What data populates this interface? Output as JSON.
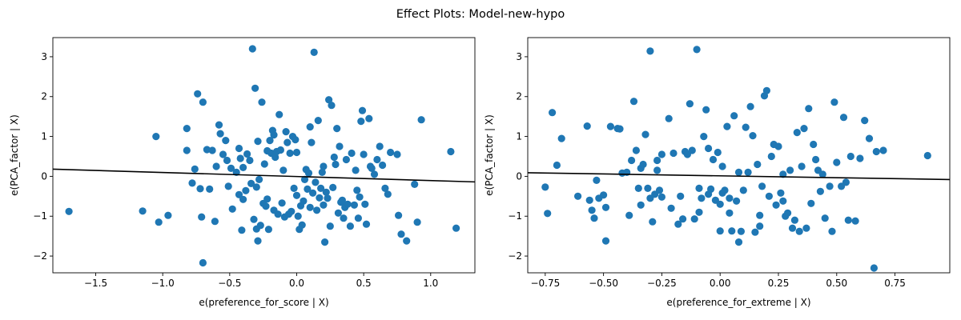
{
  "figure": {
    "suptitle": "Effect Plots: Model-new-hypo"
  },
  "colors": {
    "point": "#1f77b4",
    "line": "#000000",
    "axis": "#000000"
  },
  "chart_data": [
    {
      "type": "scatter",
      "xlabel": "e(preference_for_score | X)",
      "ylabel": "e(PCA_factor | X)",
      "xlim": [
        -1.82,
        1.33
      ],
      "ylim": [
        -2.42,
        3.48
      ],
      "xticks": [
        -1.5,
        -1.0,
        -0.5,
        0.0,
        0.5,
        1.0
      ],
      "xtick_labels": [
        "−1.5",
        "−1.0",
        "−0.5",
        "0.0",
        "0.5",
        "1.0"
      ],
      "yticks": [
        -2,
        -1,
        0,
        1,
        2,
        3
      ],
      "ytick_labels": [
        "−2",
        "−1",
        "0",
        "1",
        "2",
        "3"
      ],
      "grid": false,
      "fit_line": {
        "x": [
          -1.82,
          1.33
        ],
        "y": [
          0.18,
          -0.14
        ]
      },
      "points": [
        [
          -1.7,
          -0.88
        ],
        [
          -1.15,
          -0.87
        ],
        [
          -1.05,
          1.0
        ],
        [
          -1.03,
          -1.15
        ],
        [
          -0.96,
          -0.98
        ],
        [
          -0.82,
          1.2
        ],
        [
          -0.82,
          0.65
        ],
        [
          -0.78,
          -0.17
        ],
        [
          -0.76,
          0.18
        ],
        [
          -0.74,
          2.07
        ],
        [
          -0.72,
          -0.31
        ],
        [
          -0.71,
          -1.02
        ],
        [
          -0.7,
          1.86
        ],
        [
          -0.7,
          -2.17
        ],
        [
          -0.67,
          0.67
        ],
        [
          -0.65,
          -0.32
        ],
        [
          -0.63,
          0.65
        ],
        [
          -0.61,
          -1.13
        ],
        [
          -0.6,
          0.25
        ],
        [
          -0.58,
          1.29
        ],
        [
          -0.57,
          1.07
        ],
        [
          -0.55,
          0.55
        ],
        [
          -0.53,
          0.9
        ],
        [
          -0.52,
          0.4
        ],
        [
          -0.51,
          -0.25
        ],
        [
          -0.49,
          0.2
        ],
        [
          -0.48,
          -0.82
        ],
        [
          -0.45,
          0.1
        ],
        [
          -0.43,
          0.7
        ],
        [
          -0.43,
          -0.46
        ],
        [
          -0.42,
          0.45
        ],
        [
          -0.41,
          -1.35
        ],
        [
          -0.4,
          0.22
        ],
        [
          -0.4,
          -0.58
        ],
        [
          -0.38,
          -0.36
        ],
        [
          -0.37,
          0.56
        ],
        [
          -0.35,
          0.4
        ],
        [
          -0.34,
          -0.18
        ],
        [
          -0.33,
          3.2
        ],
        [
          -0.32,
          -1.08
        ],
        [
          -0.31,
          2.21
        ],
        [
          -0.3,
          -0.27
        ],
        [
          -0.3,
          -1.32
        ],
        [
          -0.29,
          -1.62
        ],
        [
          -0.29,
          0.88
        ],
        [
          -0.28,
          -0.08
        ],
        [
          -0.27,
          -1.23
        ],
        [
          -0.26,
          1.86
        ],
        [
          -0.25,
          -0.68
        ],
        [
          -0.24,
          0.31
        ],
        [
          -0.23,
          -0.75
        ],
        [
          -0.22,
          0.64
        ],
        [
          -0.22,
          -0.57
        ],
        [
          -0.21,
          -1.33
        ],
        [
          -0.2,
          0.9
        ],
        [
          -0.19,
          0.58
        ],
        [
          -0.18,
          1.15
        ],
        [
          -0.17,
          1.04
        ],
        [
          -0.17,
          -0.85
        ],
        [
          -0.16,
          0.48
        ],
        [
          -0.15,
          0.62
        ],
        [
          -0.14,
          -0.95
        ],
        [
          -0.13,
          1.55
        ],
        [
          -0.12,
          0.66
        ],
        [
          -0.11,
          -0.67
        ],
        [
          -0.1,
          0.15
        ],
        [
          -0.09,
          -1.02
        ],
        [
          -0.08,
          1.12
        ],
        [
          -0.07,
          0.85
        ],
        [
          -0.06,
          -0.95
        ],
        [
          -0.05,
          0.58
        ],
        [
          -0.04,
          -0.88
        ],
        [
          -0.03,
          1.0
        ],
        [
          -0.02,
          -0.3
        ],
        [
          -0.01,
          0.92
        ],
        [
          0.0,
          0.6
        ],
        [
          0.0,
          -0.48
        ],
        [
          0.01,
          -1.0
        ],
        [
          0.02,
          -1.33
        ],
        [
          0.03,
          -0.74
        ],
        [
          0.04,
          -1.22
        ],
        [
          0.05,
          -0.62
        ],
        [
          0.06,
          -0.08
        ],
        [
          0.07,
          0.17
        ],
        [
          0.08,
          -0.32
        ],
        [
          0.09,
          0.08
        ],
        [
          0.1,
          -0.78
        ],
        [
          0.1,
          1.24
        ],
        [
          0.11,
          0.85
        ],
        [
          0.12,
          -0.42
        ],
        [
          0.13,
          3.11
        ],
        [
          0.14,
          -0.15
        ],
        [
          0.15,
          -0.85
        ],
        [
          0.16,
          1.4
        ],
        [
          0.17,
          -0.54
        ],
        [
          0.18,
          -0.3
        ],
        [
          0.19,
          0.1
        ],
        [
          0.2,
          0.25
        ],
        [
          0.2,
          -0.72
        ],
        [
          0.21,
          -1.65
        ],
        [
          0.22,
          -0.4
        ],
        [
          0.23,
          -0.55
        ],
        [
          0.24,
          1.92
        ],
        [
          0.25,
          -1.25
        ],
        [
          0.26,
          1.78
        ],
        [
          0.27,
          -0.28
        ],
        [
          0.28,
          0.48
        ],
        [
          0.29,
          0.3
        ],
        [
          0.3,
          1.2
        ],
        [
          0.31,
          -0.92
        ],
        [
          0.32,
          0.75
        ],
        [
          0.33,
          -0.65
        ],
        [
          0.34,
          -0.6
        ],
        [
          0.35,
          -1.05
        ],
        [
          0.36,
          -0.78
        ],
        [
          0.37,
          0.42
        ],
        [
          0.38,
          -0.7
        ],
        [
          0.4,
          -1.25
        ],
        [
          0.41,
          0.58
        ],
        [
          0.43,
          -0.72
        ],
        [
          0.44,
          0.15
        ],
        [
          0.45,
          -0.35
        ],
        [
          0.46,
          -1.05
        ],
        [
          0.47,
          -0.52
        ],
        [
          0.48,
          1.38
        ],
        [
          0.49,
          1.65
        ],
        [
          0.5,
          0.55
        ],
        [
          0.51,
          -0.7
        ],
        [
          0.52,
          -1.2
        ],
        [
          0.54,
          1.45
        ],
        [
          0.55,
          0.25
        ],
        [
          0.56,
          0.2
        ],
        [
          0.58,
          0.05
        ],
        [
          0.6,
          0.42
        ],
        [
          0.62,
          0.75
        ],
        [
          0.64,
          0.28
        ],
        [
          0.66,
          -0.3
        ],
        [
          0.68,
          -0.45
        ],
        [
          0.7,
          0.6
        ],
        [
          0.75,
          0.55
        ],
        [
          0.76,
          -0.98
        ],
        [
          0.78,
          -1.45
        ],
        [
          0.82,
          -1.62
        ],
        [
          0.88,
          -0.2
        ],
        [
          0.9,
          -1.15
        ],
        [
          0.93,
          1.42
        ],
        [
          1.15,
          0.62
        ],
        [
          1.19,
          -1.3
        ]
      ]
    },
    {
      "type": "scatter",
      "xlabel": "e(preference_for_extreme | X)",
      "ylabel": "e(PCA_factor | X)",
      "xlim": [
        -0.825,
        0.985
      ],
      "ylim": [
        -2.42,
        3.48
      ],
      "xticks": [
        -0.75,
        -0.5,
        -0.25,
        0.0,
        0.25,
        0.5,
        0.75
      ],
      "xtick_labels": [
        "−0.75",
        "−0.50",
        "−0.25",
        "0.00",
        "0.25",
        "0.50",
        "0.75"
      ],
      "yticks": [
        -2,
        -1,
        0,
        1,
        2,
        3
      ],
      "ytick_labels": [
        "−2",
        "−1",
        "0",
        "1",
        "2",
        "3"
      ],
      "grid": false,
      "fit_line": {
        "x": [
          -0.825,
          0.985
        ],
        "y": [
          0.09,
          -0.08
        ]
      },
      "points": [
        [
          -0.75,
          -0.27
        ],
        [
          -0.74,
          -0.93
        ],
        [
          -0.72,
          1.6
        ],
        [
          -0.7,
          0.28
        ],
        [
          -0.68,
          0.95
        ],
        [
          -0.61,
          -0.5
        ],
        [
          -0.57,
          1.26
        ],
        [
          -0.56,
          -0.6
        ],
        [
          -0.55,
          -0.85
        ],
        [
          -0.54,
          -1.05
        ],
        [
          -0.53,
          -0.1
        ],
        [
          -0.52,
          -0.55
        ],
        [
          -0.5,
          -0.47
        ],
        [
          -0.49,
          -0.78
        ],
        [
          -0.49,
          -1.62
        ],
        [
          -0.47,
          1.25
        ],
        [
          -0.44,
          1.2
        ],
        [
          -0.43,
          1.19
        ],
        [
          -0.42,
          0.08
        ],
        [
          -0.4,
          0.1
        ],
        [
          -0.39,
          -0.98
        ],
        [
          -0.38,
          0.4
        ],
        [
          -0.37,
          1.88
        ],
        [
          -0.36,
          0.65
        ],
        [
          -0.35,
          -0.3
        ],
        [
          -0.34,
          -0.72
        ],
        [
          -0.34,
          0.2
        ],
        [
          -0.33,
          0.3
        ],
        [
          -0.32,
          1.05
        ],
        [
          -0.31,
          -0.3
        ],
        [
          -0.3,
          -0.55
        ],
        [
          -0.3,
          3.14
        ],
        [
          -0.29,
          -1.14
        ],
        [
          -0.28,
          -0.45
        ],
        [
          -0.27,
          0.15
        ],
        [
          -0.27,
          0.4
        ],
        [
          -0.26,
          -0.35
        ],
        [
          -0.25,
          -0.52
        ],
        [
          -0.25,
          0.55
        ],
        [
          -0.22,
          1.45
        ],
        [
          -0.21,
          -0.8
        ],
        [
          -0.2,
          0.58
        ],
        [
          -0.18,
          -1.2
        ],
        [
          -0.17,
          -0.5
        ],
        [
          -0.16,
          -1.07
        ],
        [
          -0.15,
          0.62
        ],
        [
          -0.14,
          0.55
        ],
        [
          -0.13,
          1.82
        ],
        [
          -0.12,
          0.65
        ],
        [
          -0.11,
          -1.07
        ],
        [
          -0.1,
          3.18
        ],
        [
          -0.09,
          -0.3
        ],
        [
          -0.09,
          -0.9
        ],
        [
          -0.08,
          -0.55
        ],
        [
          -0.07,
          1.0
        ],
        [
          -0.06,
          1.67
        ],
        [
          -0.05,
          -0.45
        ],
        [
          -0.05,
          0.7
        ],
        [
          -0.04,
          -0.32
        ],
        [
          -0.03,
          0.42
        ],
        [
          -0.02,
          -0.6
        ],
        [
          -0.01,
          0.6
        ],
        [
          0.0,
          -0.7
        ],
        [
          0.0,
          -1.37
        ],
        [
          0.01,
          0.25
        ],
        [
          0.01,
          -0.42
        ],
        [
          0.02,
          -0.35
        ],
        [
          0.03,
          1.25
        ],
        [
          0.04,
          -0.92
        ],
        [
          0.04,
          -0.55
        ],
        [
          0.05,
          -1.37
        ],
        [
          0.06,
          1.52
        ],
        [
          0.07,
          -0.62
        ],
        [
          0.08,
          0.1
        ],
        [
          0.08,
          -1.65
        ],
        [
          0.09,
          -1.38
        ],
        [
          0.1,
          -0.35
        ],
        [
          0.11,
          1.23
        ],
        [
          0.12,
          0.1
        ],
        [
          0.13,
          1.75
        ],
        [
          0.14,
          1.02
        ],
        [
          0.15,
          -1.4
        ],
        [
          0.16,
          0.3
        ],
        [
          0.17,
          -0.98
        ],
        [
          0.17,
          -1.25
        ],
        [
          0.18,
          -0.25
        ],
        [
          0.19,
          2.02
        ],
        [
          0.2,
          2.15
        ],
        [
          0.21,
          -0.5
        ],
        [
          0.22,
          0.5
        ],
        [
          0.23,
          0.8
        ],
        [
          0.24,
          -0.72
        ],
        [
          0.25,
          0.75
        ],
        [
          0.26,
          -0.42
        ],
        [
          0.27,
          0.05
        ],
        [
          0.27,
          -0.62
        ],
        [
          0.28,
          -1.0
        ],
        [
          0.29,
          -0.92
        ],
        [
          0.3,
          0.15
        ],
        [
          0.31,
          -1.3
        ],
        [
          0.32,
          -1.1
        ],
        [
          0.33,
          1.1
        ],
        [
          0.34,
          -1.38
        ],
        [
          0.35,
          0.25
        ],
        [
          0.36,
          1.2
        ],
        [
          0.37,
          -1.3
        ],
        [
          0.38,
          1.7
        ],
        [
          0.39,
          -0.68
        ],
        [
          0.4,
          0.8
        ],
        [
          0.41,
          0.42
        ],
        [
          0.42,
          0.15
        ],
        [
          0.43,
          -0.38
        ],
        [
          0.44,
          0.05
        ],
        [
          0.45,
          -1.05
        ],
        [
          0.47,
          -0.25
        ],
        [
          0.48,
          -1.38
        ],
        [
          0.49,
          1.86
        ],
        [
          0.5,
          0.35
        ],
        [
          0.52,
          -0.25
        ],
        [
          0.53,
          1.48
        ],
        [
          0.54,
          -0.15
        ],
        [
          0.55,
          -1.1
        ],
        [
          0.56,
          0.5
        ],
        [
          0.58,
          -1.12
        ],
        [
          0.6,
          0.45
        ],
        [
          0.62,
          1.4
        ],
        [
          0.64,
          0.95
        ],
        [
          0.66,
          -2.3
        ],
        [
          0.67,
          0.62
        ],
        [
          0.7,
          0.65
        ],
        [
          0.89,
          0.52
        ]
      ]
    }
  ]
}
